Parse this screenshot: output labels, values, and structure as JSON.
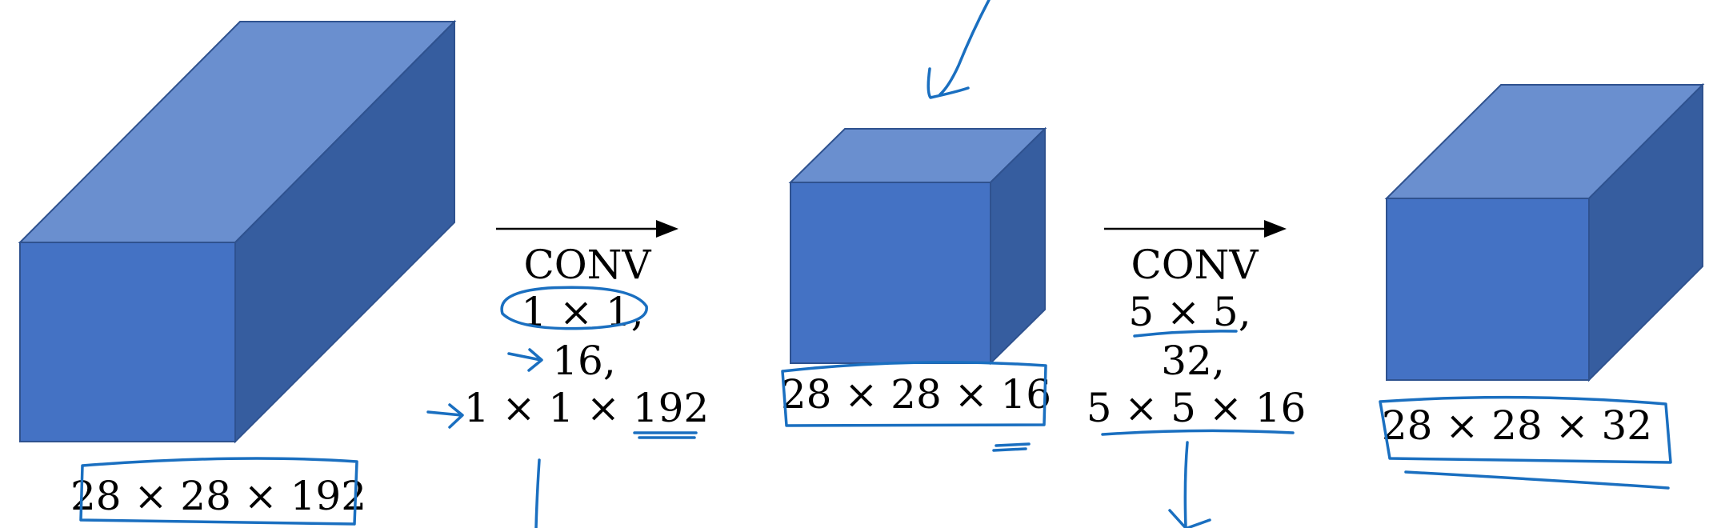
{
  "colors": {
    "box_front": "#4472c4",
    "box_top": "#6a8fcf",
    "box_side": "#365d9f",
    "box_edge": "#2f528f",
    "ink": "#1a6fc0",
    "text": "#000000"
  },
  "volumes": [
    {
      "dims": "28 × 28 × 192"
    },
    {
      "dims": "28 × 28 × 16"
    },
    {
      "dims": "28 × 28 × 32"
    }
  ],
  "conv1": {
    "title": "CONV",
    "filter": "1 × 1,",
    "count": "16,",
    "shape": "1 × 1 × 192"
  },
  "conv2": {
    "title": "CONV",
    "filter": "5 × 5,",
    "count": "32,",
    "shape": "5 × 5 × 16"
  }
}
